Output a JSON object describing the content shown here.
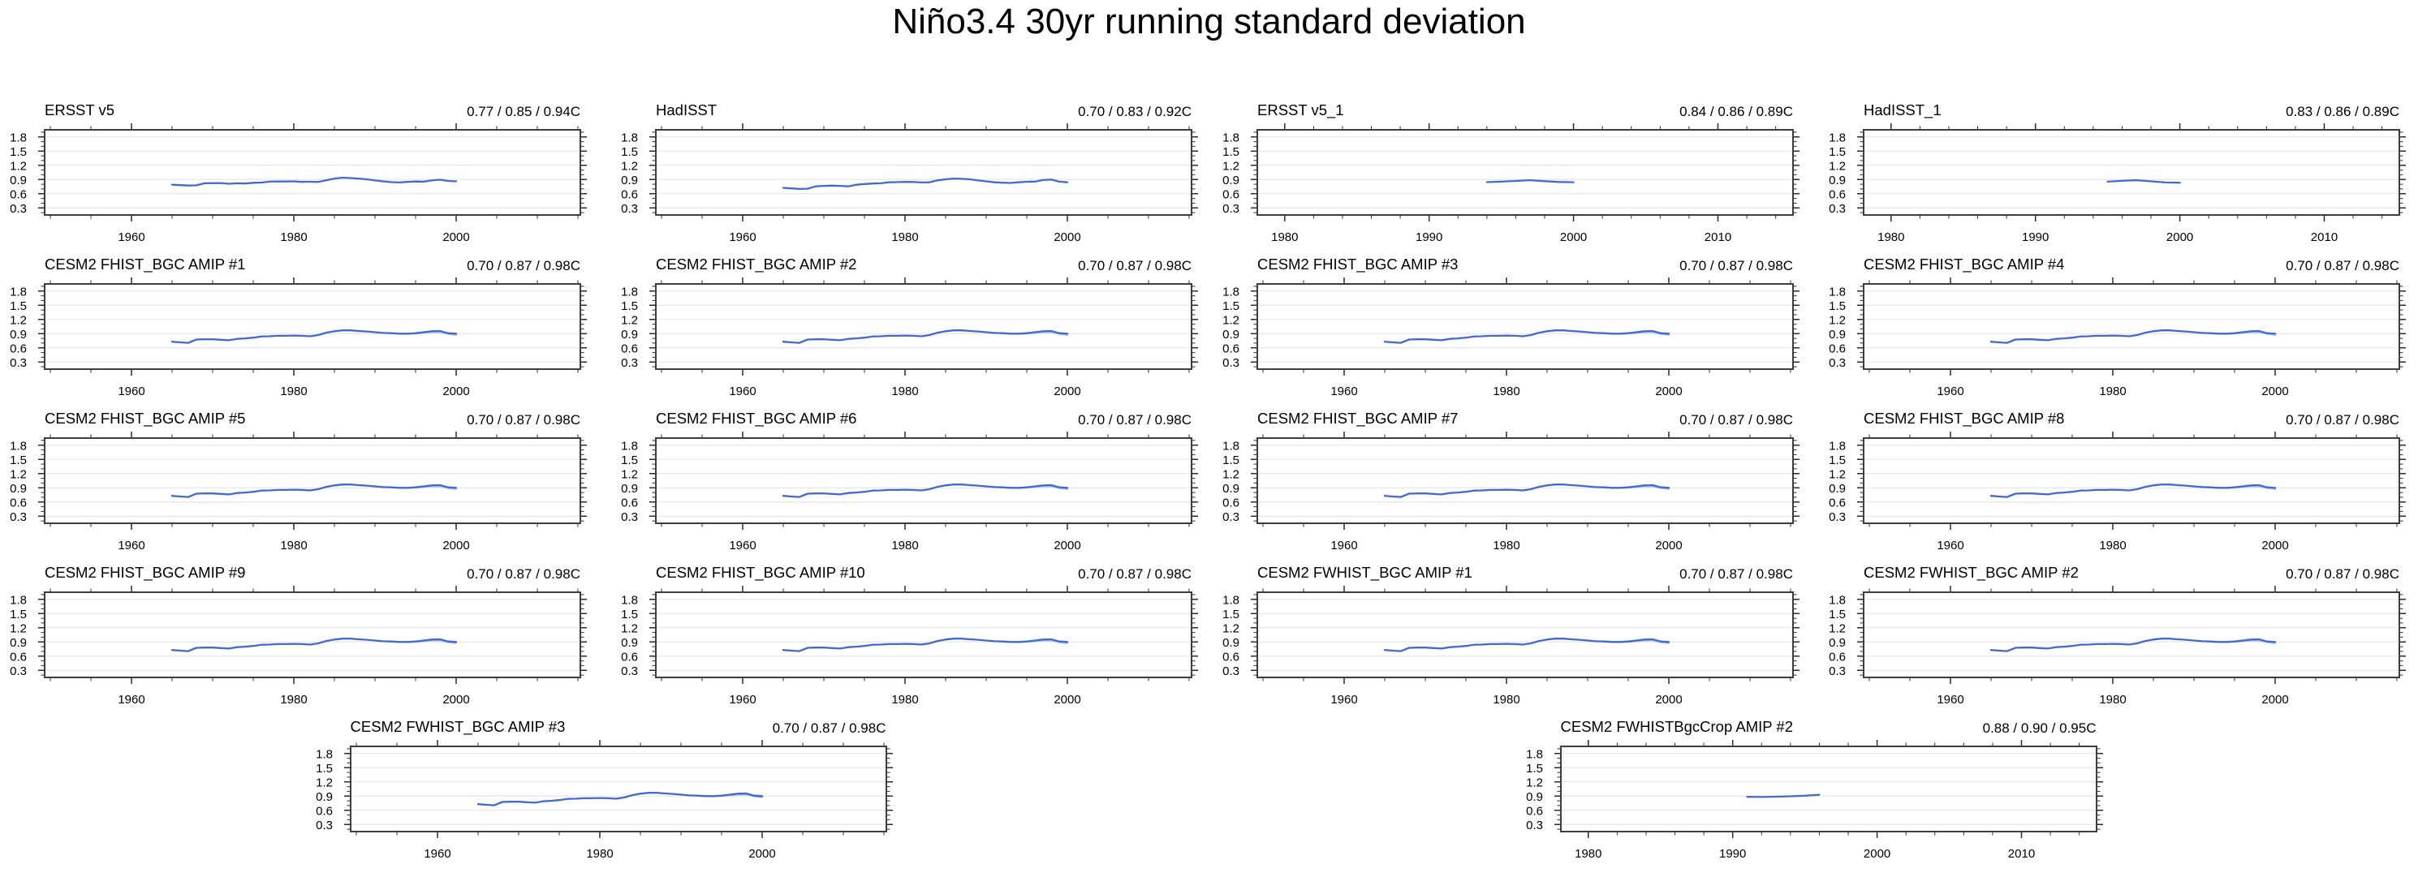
{
  "chart_data": {
    "type": "line",
    "title": "Niño3.4 30yr running standard deviation",
    "y_axis": {
      "min": 0.15,
      "max": 1.95,
      "major_ticks": [
        0.3,
        0.6,
        0.9,
        1.2,
        1.5,
        1.8
      ],
      "tick_labels": [
        "0.3",
        "0.6",
        "0.9",
        "1.2",
        "1.5",
        "1.8"
      ],
      "minor_step": 0.1,
      "grid": true
    },
    "x_axis_types": {
      "a": {
        "min": 1949.3,
        "max": 2015.3,
        "major_ticks": [
          1960,
          1980,
          2000
        ],
        "minor_step": 5,
        "minor_start": 1950
      },
      "b": {
        "min": 1978.1,
        "max": 2015.2,
        "major_ticks": [
          1980,
          1990,
          2000,
          2010
        ],
        "minor_step": 2,
        "minor_start": 1980
      }
    },
    "colors": {
      "line": "#4468d1",
      "line_light": "#a9c3ef",
      "grid": "#e7e7e7",
      "box_border": "#3d3d3d",
      "tick": "#2b2b2b",
      "text": "#000000",
      "background": "#ffffff"
    },
    "series": {
      "ersst_v5": {
        "x": [
          1965,
          1966,
          1967,
          1968,
          1969,
          1970,
          1971,
          1972,
          1973,
          1974,
          1975,
          1976,
          1977,
          1978,
          1979,
          1980,
          1981,
          1982,
          1983,
          1984,
          1985,
          1986,
          1987,
          1988,
          1989,
          1990,
          1991,
          1992,
          1993,
          1994,
          1995,
          1996,
          1997,
          1998,
          1999,
          2000
        ],
        "y": [
          0.79,
          0.78,
          0.772,
          0.778,
          0.82,
          0.822,
          0.825,
          0.81,
          0.82,
          0.815,
          0.83,
          0.835,
          0.855,
          0.86,
          0.858,
          0.862,
          0.85,
          0.852,
          0.848,
          0.885,
          0.92,
          0.938,
          0.93,
          0.92,
          0.905,
          0.88,
          0.862,
          0.845,
          0.838,
          0.85,
          0.858,
          0.855,
          0.88,
          0.895,
          0.87,
          0.862
        ]
      },
      "hadisst": {
        "x": [
          1965,
          1966,
          1967,
          1968,
          1969,
          1970,
          1971,
          1972,
          1973,
          1974,
          1975,
          1976,
          1977,
          1978,
          1979,
          1980,
          1981,
          1982,
          1983,
          1984,
          1985,
          1986,
          1987,
          1988,
          1989,
          1990,
          1991,
          1992,
          1993,
          1994,
          1995,
          1996,
          1997,
          1998,
          1999,
          2000
        ],
        "y": [
          0.725,
          0.712,
          0.7,
          0.705,
          0.755,
          0.765,
          0.77,
          0.765,
          0.755,
          0.79,
          0.805,
          0.815,
          0.82,
          0.84,
          0.845,
          0.85,
          0.848,
          0.838,
          0.84,
          0.882,
          0.905,
          0.92,
          0.915,
          0.905,
          0.88,
          0.862,
          0.84,
          0.832,
          0.828,
          0.84,
          0.852,
          0.855,
          0.888,
          0.9,
          0.855,
          0.84
        ]
      },
      "ersst_v5_1": {
        "x": [
          1994,
          1995,
          1996,
          1997,
          1998,
          1999,
          2000
        ],
        "y": [
          0.845,
          0.855,
          0.87,
          0.885,
          0.865,
          0.848,
          0.843
        ]
      },
      "hadisst_1": {
        "x": [
          1995,
          1996,
          1997,
          1998,
          1999,
          2000
        ],
        "y": [
          0.855,
          0.872,
          0.885,
          0.862,
          0.838,
          0.832
        ]
      },
      "cesm2_amip": {
        "x": [
          1965,
          1966,
          1967,
          1968,
          1969,
          1970,
          1971,
          1972,
          1973,
          1974,
          1975,
          1976,
          1977,
          1978,
          1979,
          1980,
          1981,
          1982,
          1983,
          1984,
          1985,
          1986,
          1987,
          1988,
          1989,
          1990,
          1991,
          1992,
          1993,
          1994,
          1995,
          1996,
          1997,
          1998,
          1999,
          2000
        ],
        "y": [
          0.73,
          0.715,
          0.705,
          0.775,
          0.78,
          0.78,
          0.77,
          0.76,
          0.79,
          0.8,
          0.815,
          0.84,
          0.845,
          0.855,
          0.855,
          0.86,
          0.855,
          0.845,
          0.87,
          0.92,
          0.95,
          0.97,
          0.97,
          0.955,
          0.945,
          0.93,
          0.915,
          0.91,
          0.9,
          0.9,
          0.91,
          0.93,
          0.95,
          0.955,
          0.91,
          0.9
        ]
      },
      "cesm2_amip_light": {
        "x": [
          1994,
          1995,
          1996,
          1997,
          1998,
          1999,
          2000
        ],
        "y": [
          0.895,
          0.902,
          0.915,
          0.93,
          0.932,
          0.89,
          0.872
        ]
      },
      "fwhistbgccrop_2": {
        "x": [
          1991,
          1992,
          1993,
          1994,
          1995,
          1996
        ],
        "y": [
          0.883,
          0.88,
          0.887,
          0.895,
          0.908,
          0.928
        ]
      }
    },
    "panels": [
      {
        "title": "ERSST v5",
        "stats": "0.77 / 0.85 / 0.94C",
        "x_type": "a",
        "series": "ersst_v5",
        "row": 0,
        "col": 0
      },
      {
        "title": "HadISST",
        "stats": "0.70 / 0.83 / 0.92C",
        "x_type": "a",
        "series": "hadisst",
        "row": 0,
        "col": 1
      },
      {
        "title": "ERSST v5_1",
        "stats": "0.84 / 0.86 / 0.89C",
        "x_type": "b",
        "series": "ersst_v5_1",
        "row": 0,
        "col": 2
      },
      {
        "title": "HadISST_1",
        "stats": "0.83 / 0.86 / 0.89C",
        "x_type": "b",
        "series": "hadisst_1",
        "row": 0,
        "col": 3
      },
      {
        "title": "CESM2 FHIST_BGC AMIP #1",
        "stats": "0.70 / 0.87 / 0.98C",
        "x_type": "a",
        "series": "cesm2_amip",
        "series_light": "cesm2_amip_light",
        "row": 1,
        "col": 0
      },
      {
        "title": "CESM2 FHIST_BGC AMIP #2",
        "stats": "0.70 / 0.87 / 0.98C",
        "x_type": "a",
        "series": "cesm2_amip",
        "series_light": "cesm2_amip_light",
        "row": 1,
        "col": 1
      },
      {
        "title": "CESM2 FHIST_BGC AMIP #3",
        "stats": "0.70 / 0.87 / 0.98C",
        "x_type": "a",
        "series": "cesm2_amip",
        "series_light": "cesm2_amip_light",
        "row": 1,
        "col": 2
      },
      {
        "title": "CESM2 FHIST_BGC AMIP #4",
        "stats": "0.70 / 0.87 / 0.98C",
        "x_type": "a",
        "series": "cesm2_amip",
        "series_light": "cesm2_amip_light",
        "row": 1,
        "col": 3
      },
      {
        "title": "CESM2 FHIST_BGC AMIP #5",
        "stats": "0.70 / 0.87 / 0.98C",
        "x_type": "a",
        "series": "cesm2_amip",
        "series_light": "cesm2_amip_light",
        "row": 2,
        "col": 0
      },
      {
        "title": "CESM2 FHIST_BGC AMIP #6",
        "stats": "0.70 / 0.87 / 0.98C",
        "x_type": "a",
        "series": "cesm2_amip",
        "series_light": "cesm2_amip_light",
        "row": 2,
        "col": 1
      },
      {
        "title": "CESM2 FHIST_BGC AMIP #7",
        "stats": "0.70 / 0.87 / 0.98C",
        "x_type": "a",
        "series": "cesm2_amip",
        "series_light": "cesm2_amip_light",
        "row": 2,
        "col": 2
      },
      {
        "title": "CESM2 FHIST_BGC AMIP #8",
        "stats": "0.70 / 0.87 / 0.98C",
        "x_type": "a",
        "series": "cesm2_amip",
        "series_light": "cesm2_amip_light",
        "row": 2,
        "col": 3
      },
      {
        "title": "CESM2 FHIST_BGC AMIP #9",
        "stats": "0.70 / 0.87 / 0.98C",
        "x_type": "a",
        "series": "cesm2_amip",
        "series_light": "cesm2_amip_light",
        "row": 3,
        "col": 0
      },
      {
        "title": "CESM2 FHIST_BGC AMIP #10",
        "stats": "0.70 / 0.87 / 0.98C",
        "x_type": "a",
        "series": "cesm2_amip",
        "series_light": "cesm2_amip_light",
        "row": 3,
        "col": 1
      },
      {
        "title": "CESM2 FWHIST_BGC AMIP #1",
        "stats": "0.70 / 0.87 / 0.98C",
        "x_type": "a",
        "series": "cesm2_amip",
        "series_light": "cesm2_amip_light",
        "row": 3,
        "col": 2
      },
      {
        "title": "CESM2 FWHIST_BGC AMIP #2",
        "stats": "0.70 / 0.87 / 0.98C",
        "x_type": "a",
        "series": "cesm2_amip",
        "series_light": "cesm2_amip_light",
        "row": 3,
        "col": 3
      },
      {
        "title": "CESM2 FWHIST_BGC AMIP #3",
        "stats": "0.70 / 0.87 / 0.98C",
        "x_type": "a",
        "series": "cesm2_amip",
        "series_light": "cesm2_amip_light",
        "row": 4,
        "col": 0.5
      },
      {
        "title": "CESM2 FWHISTBgcCrop AMIP #2",
        "stats": "0.88 / 0.90 / 0.95C",
        "x_type": "b",
        "series": "fwhistbgccrop_2",
        "row": 4,
        "col": 2.5
      }
    ]
  }
}
